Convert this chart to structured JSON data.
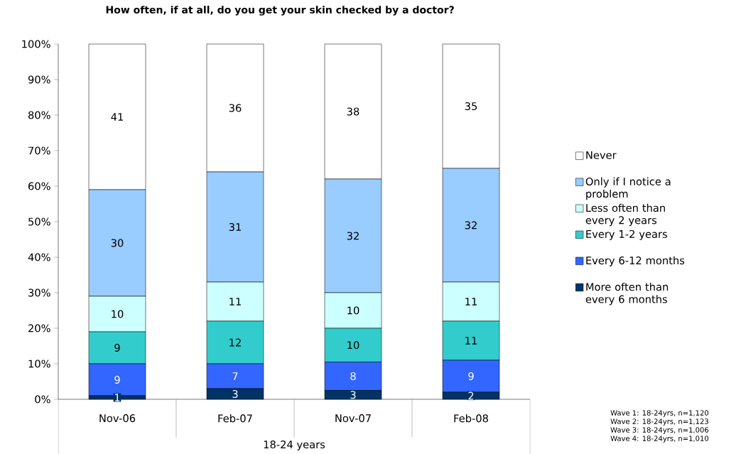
{
  "chart_data": {
    "type": "bar",
    "stacked": true,
    "title": "How often, if at all, do you get your skin checked by a doctor?",
    "xlabel": "18-24 years",
    "categories": [
      "Nov-06",
      "Feb-07",
      "Nov-07",
      "Feb-08"
    ],
    "series": [
      {
        "name": "More often than every 6 months",
        "color": "#003366",
        "values": [
          1,
          3,
          2.5,
          2
        ],
        "value_labels": [
          "1",
          "3",
          "3",
          "2"
        ]
      },
      {
        "name": "Every 6-12 months",
        "color": "#3366ff",
        "values": [
          9,
          7,
          8,
          9
        ],
        "value_labels": [
          "9",
          "7",
          "8",
          "9"
        ]
      },
      {
        "name": "Every 1-2 years",
        "color": "#33cccc",
        "values": [
          9,
          12,
          9.5,
          11
        ],
        "value_labels": [
          "9",
          "12",
          "10",
          "11"
        ]
      },
      {
        "name": "Less often than every 2 years",
        "color": "#ccffff",
        "values": [
          10,
          11,
          10,
          11
        ],
        "value_labels": [
          "10",
          "11",
          "10",
          "11"
        ]
      },
      {
        "name": "Only if I notice a problem",
        "color": "#99ccff",
        "values": [
          30,
          31,
          32,
          32
        ],
        "value_labels": [
          "30",
          "31",
          "32",
          "32"
        ]
      },
      {
        "name": "Never",
        "color": "#ffffff",
        "values": [
          41,
          36,
          38,
          35
        ],
        "value_labels": [
          "41",
          "36",
          "38",
          "35"
        ]
      }
    ],
    "ylim": [
      0,
      100
    ],
    "yticks": [
      {
        "value": 0,
        "label": "0%"
      },
      {
        "value": 10,
        "label": "10%"
      },
      {
        "value": 20,
        "label": "20%"
      },
      {
        "value": 30,
        "label": "30%"
      },
      {
        "value": 40,
        "label": "40%"
      },
      {
        "value": 50,
        "label": "50%"
      },
      {
        "value": 60,
        "label": "60%"
      },
      {
        "value": 70,
        "label": "70%"
      },
      {
        "value": 80,
        "label": "80%"
      },
      {
        "value": 90,
        "label": "90%"
      },
      {
        "value": 100,
        "label": "100%"
      }
    ],
    "legend": "right",
    "annotations": [
      "Wave 1: 18-24yrs, n=1,120",
      "Wave 2: 18-24yrs, n=1,123",
      "Wave 3: 18-24yrs, n=1,006",
      "Wave 4: 18-24yrs, n=1,010"
    ]
  }
}
